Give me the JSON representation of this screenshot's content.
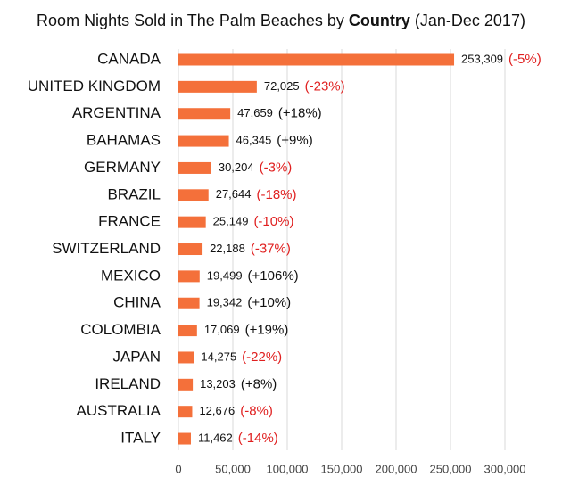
{
  "chart_data": {
    "type": "hbar",
    "title": [
      {
        "text": "Room Nights Sold in The Palm Beaches by",
        "bold": false
      },
      {
        "text": "Country",
        "bold": true
      },
      {
        "text": "(Jan-Dec 2017)",
        "bold": false
      }
    ],
    "categories": [
      "CANADA",
      "UNITED KINGDOM",
      "ARGENTINA",
      "BAHAMAS",
      "GERMANY",
      "BRAZIL",
      "FRANCE",
      "SWITZERLAND",
      "MEXICO",
      "CHINA",
      "COLOMBIA",
      "JAPAN",
      "IRELAND",
      "AUSTRALIA",
      "ITALY"
    ],
    "values": [
      253309,
      72025,
      47659,
      46345,
      30204,
      27644,
      25149,
      22188,
      19499,
      19342,
      17069,
      14275,
      13203,
      12676,
      11462
    ],
    "value_labels": [
      "253,309",
      "72,025",
      "47,659",
      "46,345",
      "30,204",
      "27,644",
      "25,149",
      "22,188",
      "19,499",
      "19,342",
      "17,069",
      "14,275",
      "13,203",
      "12,676",
      "11,462"
    ],
    "changes": [
      "(-5%)",
      "(-23%)",
      "(+18%)",
      "(+9%)",
      "(-3%)",
      "(-18%)",
      "(-10%)",
      "(-37%)",
      "(+106%)",
      "(+10%)",
      "(+19%)",
      "(-22%)",
      "(+8%)",
      "(-8%)",
      "(-14%)"
    ],
    "color": "#f4703a",
    "negative_color": "#e02020",
    "positive_color": "#111111",
    "xlim": [
      0,
      300000
    ],
    "xticks": [
      0,
      {
        "value": 50000,
        "label": "50,000"
      },
      {
        "value": 100000,
        "label": "100,000"
      },
      {
        "value": 150000,
        "label": "150,000"
      },
      {
        "value": 200000,
        "label": "200,000"
      },
      {
        "value": 250000,
        "label": "250,000"
      },
      {
        "value": 300000,
        "label": "300,000"
      }
    ],
    "grid": true
  }
}
